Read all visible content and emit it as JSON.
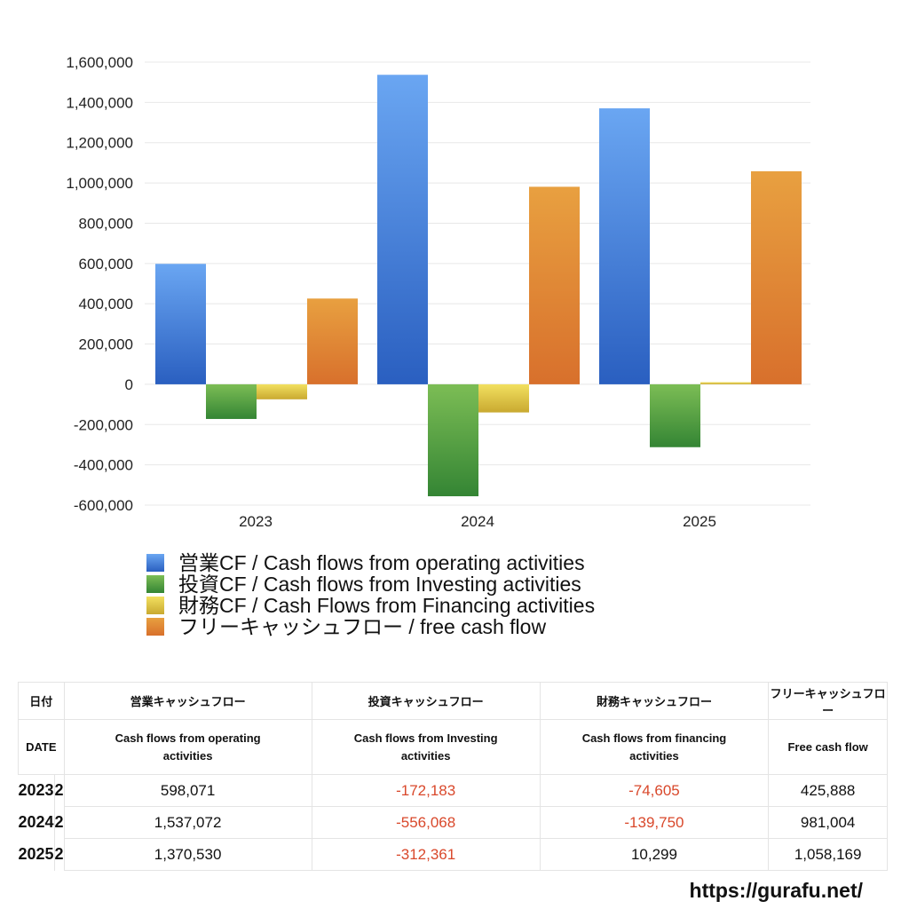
{
  "chart_data": {
    "type": "bar",
    "categories": [
      "2023",
      "2024",
      "2025"
    ],
    "ylim": [
      -600000,
      1600000
    ],
    "yticks": [
      1600000,
      1400000,
      1200000,
      1000000,
      800000,
      600000,
      400000,
      200000,
      0,
      -200000,
      -400000,
      -600000
    ],
    "ytick_labels": [
      "1,600,000",
      "1,400,000",
      "1,200,000",
      "1,000,000",
      "800,000",
      "600,000",
      "400,000",
      "200,000",
      "0",
      "-200,000",
      "-400,000",
      "-600,000"
    ],
    "grid": true,
    "legend_placement": "bottom",
    "series": [
      {
        "name": "営業CF / Cash flows from operating activities",
        "values": [
          598071,
          1537072,
          1370530
        ],
        "color_top": "#6aa6f2",
        "color_bottom": "#2a5fc0"
      },
      {
        "name": "投資CF / Cash flows from Investing activities",
        "values": [
          -172183,
          -556068,
          -312361
        ],
        "color_top": "#7cbd55",
        "color_bottom": "#348534"
      },
      {
        "name": "財務CF / Cash Flows from Financing activities",
        "values": [
          -74605,
          -139750,
          10299
        ],
        "color_top": "#f2e060",
        "color_bottom": "#c9a930"
      },
      {
        "name": "フリーキャッシュフロー / free cash flow",
        "values": [
          425888,
          981004,
          1058169
        ],
        "color_top": "#e8a040",
        "color_bottom": "#d8702c"
      }
    ]
  },
  "table": {
    "header_jp": [
      "日付",
      "営業キャッシュフロー",
      "投資キャッシュフロー",
      "財務キャッシュフロー",
      "フリーキャッシュフロー"
    ],
    "header_en": [
      "DATE",
      "Cash flows from operating activities",
      "Cash flows from Investing activities",
      "Cash flows from financing activities",
      "Free cash flow"
    ],
    "rows": [
      {
        "year": "2023",
        "month": "2",
        "cells": [
          "598,071",
          "-172,183",
          "-74,605",
          "425,888"
        ]
      },
      {
        "year": "2024",
        "month": "2",
        "cells": [
          "1,537,072",
          "-556,068",
          "-139,750",
          "981,004"
        ]
      },
      {
        "year": "2025",
        "month": "2",
        "cells": [
          "1,370,530",
          "-312,361",
          "10,299",
          "1,058,169"
        ]
      }
    ],
    "negative_color": "#d9482b"
  },
  "footer": {
    "url": "https://gurafu.net/"
  }
}
